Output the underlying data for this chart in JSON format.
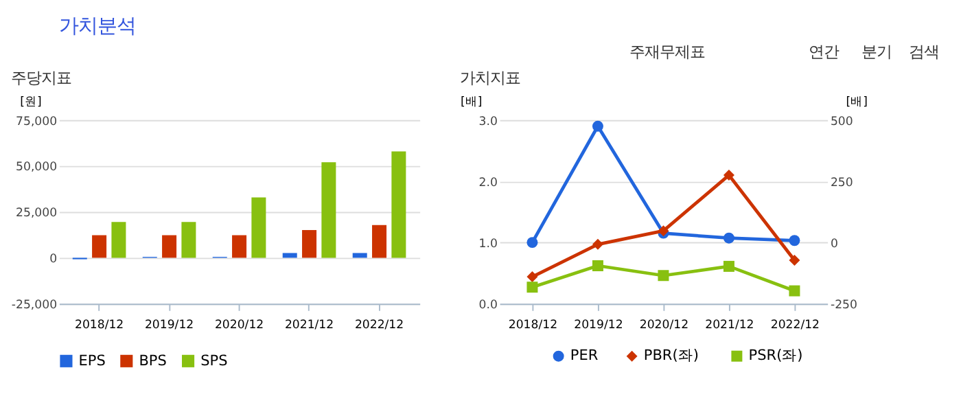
{
  "chart_data": [
    {
      "type": "other",
      "title": "가치분석",
      "annotations": [
        "주재무제표",
        "연간",
        "분기",
        "검색"
      ]
    },
    {
      "type": "bar",
      "title": "주당지표",
      "ylabel": "[원]",
      "categories": [
        "2018/12",
        "2019/12",
        "2020/12",
        "2021/12",
        "2022/12"
      ],
      "series": [
        {
          "name": "EPS",
          "color": "#2266dd",
          "values": [
            -800,
            500,
            500,
            2600,
            2600
          ]
        },
        {
          "name": "BPS",
          "color": "#cc3300",
          "values": [
            12300,
            12300,
            12300,
            15100,
            17800
          ]
        },
        {
          "name": "SPS",
          "color": "#88c010",
          "values": [
            19500,
            19500,
            32900,
            52000,
            57900
          ]
        }
      ],
      "ylim": [
        -25000,
        75000
      ],
      "yticks": [
        {
          "value": -25000,
          "label": "-25,000"
        },
        {
          "value": 0,
          "label": "0"
        },
        {
          "value": 25000,
          "label": "25,000"
        },
        {
          "value": 50000,
          "label": "50,000"
        },
        {
          "value": 75000,
          "label": "75,000"
        }
      ],
      "grid": "y",
      "legend": "bottom"
    },
    {
      "type": "line",
      "title": "가치지표",
      "ylabel": "[배]",
      "y2label": "[배]",
      "categories": [
        "2018/12",
        "2019/12",
        "2020/12",
        "2021/12",
        "2022/12"
      ],
      "series": [
        {
          "name": "PER",
          "color": "#2266dd",
          "axis": "y2",
          "marker": "circle",
          "values": [
            0,
            475,
            38,
            18,
            8
          ]
        },
        {
          "name": "PBR(좌)",
          "color": "#cc3300",
          "marker": "diamond",
          "values": [
            0.44,
            0.97,
            1.19,
            2.1,
            0.71
          ]
        },
        {
          "name": "PSR(좌)",
          "color": "#88c010",
          "marker": "square",
          "values": [
            0.27,
            0.62,
            0.46,
            0.61,
            0.21
          ]
        }
      ],
      "ylim": [
        0,
        3
      ],
      "yticks": [
        {
          "value": 0,
          "label": "0.0"
        },
        {
          "value": 1,
          "label": "1.0"
        },
        {
          "value": 2,
          "label": "2.0"
        },
        {
          "value": 3,
          "label": "3.0"
        }
      ],
      "y2lim": [
        -250,
        500
      ],
      "y2ticks": [
        -250,
        0,
        250,
        500
      ],
      "grid": "y",
      "legend": "bottom"
    }
  ]
}
